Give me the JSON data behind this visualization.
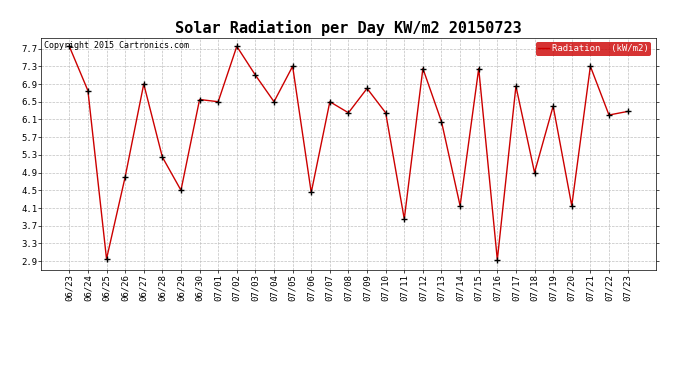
{
  "title": "Solar Radiation per Day KW/m2 20150723",
  "copyright": "Copyright 2015 Cartronics.com",
  "legend_label": "Radiation  (kW/m2)",
  "dates": [
    "06/23",
    "06/24",
    "06/25",
    "06/26",
    "06/27",
    "06/28",
    "06/29",
    "06/30",
    "07/01",
    "07/02",
    "07/03",
    "07/04",
    "07/05",
    "07/06",
    "07/07",
    "07/08",
    "07/09",
    "07/10",
    "07/11",
    "07/12",
    "07/13",
    "07/14",
    "07/15",
    "07/16",
    "07/17",
    "07/18",
    "07/19",
    "07/20",
    "07/21",
    "07/22",
    "07/23"
  ],
  "values": [
    7.75,
    6.75,
    2.95,
    4.8,
    6.9,
    5.25,
    4.5,
    6.55,
    6.5,
    7.75,
    7.1,
    6.5,
    7.3,
    4.45,
    6.5,
    6.25,
    6.8,
    6.25,
    3.85,
    7.25,
    6.05,
    4.15,
    7.25,
    2.93,
    6.85,
    4.9,
    6.4,
    4.15,
    7.3,
    6.2,
    6.28
  ],
  "line_color": "#cc0000",
  "marker_color": "#000000",
  "background_color": "#ffffff",
  "grid_color": "#c0c0c0",
  "ylim": [
    2.7,
    7.95
  ],
  "yticks": [
    2.9,
    3.3,
    3.7,
    4.1,
    4.5,
    4.9,
    5.3,
    5.7,
    6.1,
    6.5,
    6.9,
    7.3,
    7.7
  ],
  "title_fontsize": 11,
  "tick_fontsize": 6.5,
  "copyright_fontsize": 6,
  "legend_bg": "#cc0000",
  "legend_text_color": "#ffffff",
  "legend_fontsize": 6.5
}
